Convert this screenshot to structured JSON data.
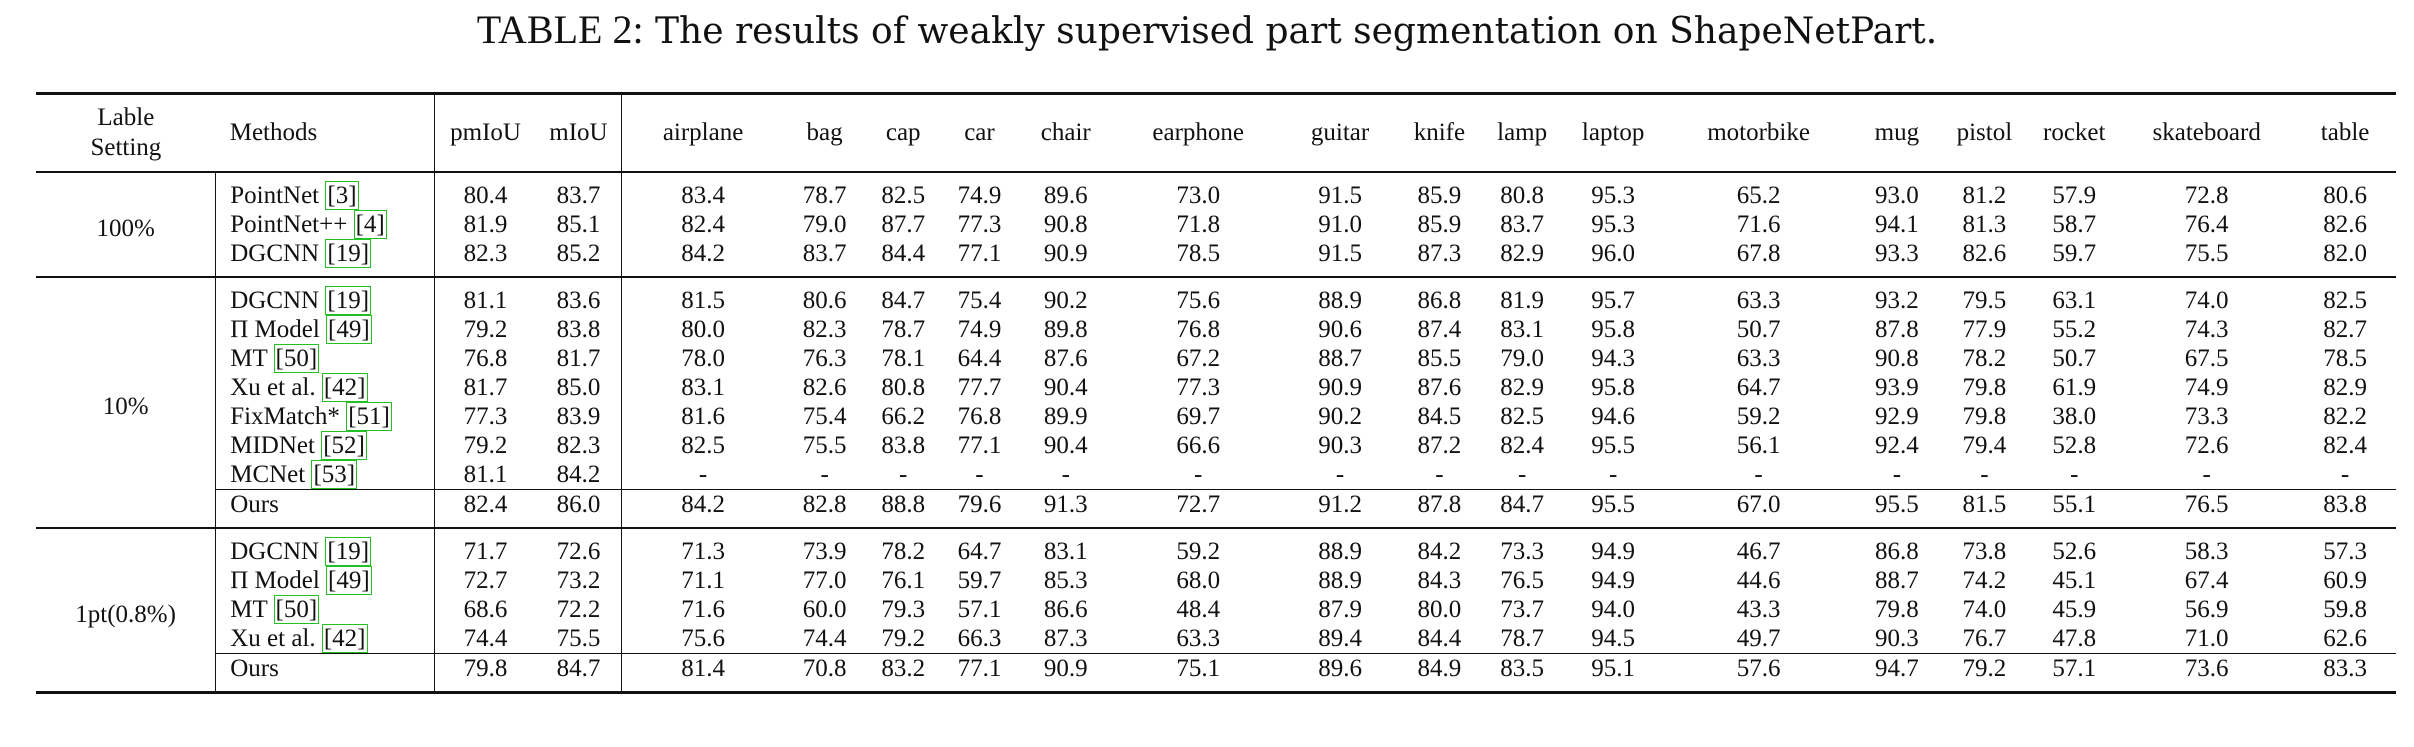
{
  "caption": {
    "label": "TABLE 2:",
    "text": "The results of weakly supervised part segmentation on ShapeNetPart."
  },
  "header": {
    "setting": [
      "Lable",
      "Setting"
    ],
    "methods": "Methods",
    "columns": [
      "pmIoU",
      "mIoU",
      "airplane",
      "bag",
      "cap",
      "car",
      "chair",
      "earphone",
      "guitar",
      "knife",
      "lamp",
      "laptop",
      "motorbike",
      "mug",
      "pistol",
      "rocket",
      "skateboard",
      "table"
    ]
  },
  "groups": [
    {
      "setting": "100%",
      "rows": [
        {
          "method": "PointNet",
          "ref": "[3]",
          "values": [
            "80.4",
            "83.7",
            "83.4",
            "78.7",
            "82.5",
            "74.9",
            "89.6",
            "73.0",
            "91.5",
            "85.9",
            "80.8",
            "95.3",
            "65.2",
            "93.0",
            "81.2",
            "57.9",
            "72.8",
            "80.6"
          ],
          "bold": []
        },
        {
          "method": "PointNet++",
          "ref": "[4]",
          "values": [
            "81.9",
            "85.1",
            "82.4",
            "79.0",
            "87.7",
            "77.3",
            "90.8",
            "71.8",
            "91.0",
            "85.9",
            "83.7",
            "95.3",
            "71.6",
            "94.1",
            "81.3",
            "58.7",
            "76.4",
            "82.6"
          ],
          "bold": []
        },
        {
          "method": "DGCNN",
          "ref": "[19]",
          "values": [
            "82.3",
            "85.2",
            "84.2",
            "83.7",
            "84.4",
            "77.1",
            "90.9",
            "78.5",
            "91.5",
            "87.3",
            "82.9",
            "96.0",
            "67.8",
            "93.3",
            "82.6",
            "59.7",
            "75.5",
            "82.0"
          ],
          "bold": []
        }
      ]
    },
    {
      "setting": "10%",
      "rows": [
        {
          "method": "DGCNN",
          "ref": "[19]",
          "values": [
            "81.1",
            "83.6",
            "81.5",
            "80.6",
            "84.7",
            "75.4",
            "90.2",
            "75.6",
            "88.9",
            "86.8",
            "81.9",
            "95.7",
            "63.3",
            "93.2",
            "79.5",
            "63.1",
            "74.0",
            "82.5"
          ],
          "bold": [
            15
          ]
        },
        {
          "method": "Π Model",
          "ref": "[49]",
          "values": [
            "79.2",
            "83.8",
            "80.0",
            "82.3",
            "78.7",
            "74.9",
            "89.8",
            "76.8",
            "90.6",
            "87.4",
            "83.1",
            "95.8",
            "50.7",
            "87.8",
            "77.9",
            "55.2",
            "74.3",
            "82.7"
          ],
          "bold": [
            11
          ]
        },
        {
          "method": "MT",
          "ref": "[50]",
          "values": [
            "76.8",
            "81.7",
            "78.0",
            "76.3",
            "78.1",
            "64.4",
            "87.6",
            "67.2",
            "88.7",
            "85.5",
            "79.0",
            "94.3",
            "63.3",
            "90.8",
            "78.2",
            "50.7",
            "67.5",
            "78.5"
          ],
          "bold": []
        },
        {
          "method": "Xu et al.",
          "ref": "[42]",
          "values": [
            "81.7",
            "85.0",
            "83.1",
            "82.6",
            "80.8",
            "77.7",
            "90.4",
            "77.3",
            "90.9",
            "87.6",
            "82.9",
            "95.8",
            "64.7",
            "93.9",
            "79.8",
            "61.9",
            "74.9",
            "82.9"
          ],
          "bold": [
            7,
            11
          ]
        },
        {
          "method": "FixMatch*",
          "ref": "[51]",
          "values": [
            "77.3",
            "83.9",
            "81.6",
            "75.4",
            "66.2",
            "76.8",
            "89.9",
            "69.7",
            "90.2",
            "84.5",
            "82.5",
            "94.6",
            "59.2",
            "92.9",
            "79.8",
            "38.0",
            "73.3",
            "82.2"
          ],
          "bold": []
        },
        {
          "method": "MIDNet",
          "ref": "[52]",
          "values": [
            "79.2",
            "82.3",
            "82.5",
            "75.5",
            "83.8",
            "77.1",
            "90.4",
            "66.6",
            "90.3",
            "87.2",
            "82.4",
            "95.5",
            "56.1",
            "92.4",
            "79.4",
            "52.8",
            "72.6",
            "82.4"
          ],
          "bold": []
        },
        {
          "method": "MCNet",
          "ref": "[53]",
          "values": [
            "81.1",
            "84.2",
            "-",
            "-",
            "-",
            "-",
            "-",
            "-",
            "-",
            "-",
            "-",
            "-",
            "-",
            "-",
            "-",
            "-",
            "-",
            "-"
          ],
          "bold": []
        },
        {
          "method": "Ours",
          "ref": "",
          "values": [
            "82.4",
            "86.0",
            "84.2",
            "82.8",
            "88.8",
            "79.6",
            "91.3",
            "72.7",
            "91.2",
            "87.8",
            "84.7",
            "95.5",
            "67.0",
            "95.5",
            "81.5",
            "55.1",
            "76.5",
            "83.8"
          ],
          "bold": [
            0,
            1,
            2,
            3,
            4,
            5,
            6,
            8,
            9,
            10,
            12,
            13,
            14,
            16,
            17
          ],
          "ours": true
        }
      ]
    },
    {
      "setting": "1pt(0.8%)",
      "rows": [
        {
          "method": "DGCNN",
          "ref": "[19]",
          "values": [
            "71.7",
            "72.6",
            "71.3",
            "73.9",
            "78.2",
            "64.7",
            "83.1",
            "59.2",
            "88.9",
            "84.2",
            "73.3",
            "94.9",
            "46.7",
            "86.8",
            "73.8",
            "52.6",
            "58.3",
            "57.3"
          ],
          "bold": []
        },
        {
          "method": "Π Model",
          "ref": "[49]",
          "values": [
            "72.7",
            "73.2",
            "71.1",
            "77.0",
            "76.1",
            "59.7",
            "85.3",
            "68.0",
            "88.9",
            "84.3",
            "76.5",
            "94.9",
            "44.6",
            "88.7",
            "74.2",
            "45.1",
            "67.4",
            "60.9"
          ],
          "bold": []
        },
        {
          "method": "MT",
          "ref": "[50]",
          "values": [
            "68.6",
            "72.2",
            "71.6",
            "60.0",
            "79.3",
            "57.1",
            "86.6",
            "48.4",
            "87.9",
            "80.0",
            "73.7",
            "94.0",
            "43.3",
            "79.8",
            "74.0",
            "45.9",
            "56.9",
            "59.8"
          ],
          "bold": []
        },
        {
          "method": "Xu et al.",
          "ref": "[42]",
          "values": [
            "74.4",
            "75.5",
            "75.6",
            "74.4",
            "79.2",
            "66.3",
            "87.3",
            "63.3",
            "89.4",
            "84.4",
            "78.7",
            "94.5",
            "49.7",
            "90.3",
            "76.7",
            "47.8",
            "71.0",
            "62.6"
          ],
          "bold": []
        },
        {
          "method": "Ours",
          "ref": "",
          "values": [
            "79.8",
            "84.7",
            "81.4",
            "70.8",
            "83.2",
            "77.1",
            "90.9",
            "75.1",
            "89.6",
            "84.9",
            "83.5",
            "95.1",
            "57.6",
            "94.7",
            "79.2",
            "57.1",
            "73.6",
            "83.3"
          ],
          "bold": [
            0,
            1
          ],
          "ours": true
        }
      ]
    }
  ]
}
